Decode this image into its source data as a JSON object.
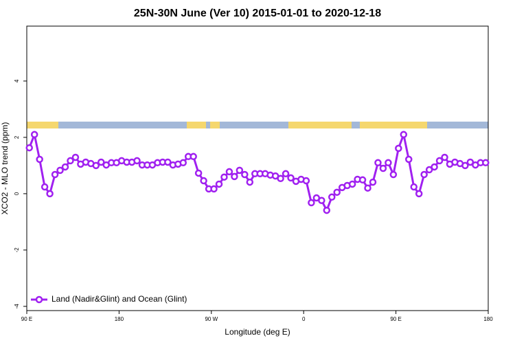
{
  "chart_data": {
    "type": "line",
    "title": "25N-30N June (Ver 10)   2015-01-01 to 2020-12-18",
    "x_label": "Longitude (deg E)",
    "y_label": "XCO2 - MLO trend (ppm)",
    "x": [
      92.5,
      97.5,
      102.5,
      107.5,
      112.5,
      117.5,
      122.5,
      127.5,
      132.5,
      137.5,
      142.5,
      147.5,
      152.5,
      157.5,
      162.5,
      167.5,
      172.5,
      177.5,
      182.5,
      187.5,
      192.5,
      197.5,
      202.5,
      207.5,
      212.5,
      217.5,
      222.5,
      227.5,
      232.5,
      237.5,
      242.5,
      247.5,
      252.5,
      257.5,
      262.5,
      267.5,
      272.5,
      277.5,
      282.5,
      287.5,
      292.5,
      297.5,
      302.5,
      307.5,
      312.5,
      317.5,
      322.5,
      327.5,
      332.5,
      337.5,
      342.5,
      347.5,
      352.5,
      357.5,
      362.5,
      367.5,
      372.5,
      377.5,
      382.5,
      387.5,
      392.5,
      397.5,
      402.5,
      407.5,
      412.5,
      417.5,
      422.5,
      427.5,
      432.5,
      437.5,
      442.5,
      447.5,
      452.5,
      457.5,
      462.5,
      467.5,
      472.5,
      477.5,
      482.5,
      487.5,
      492.5,
      497.5,
      502.5,
      507.5,
      512.5,
      517.5,
      522.5,
      527.5,
      532.5,
      537.5
    ],
    "series": [
      {
        "name": "Land (Nadir&Glint) and Ocean (Glint)",
        "color": "#a020f0",
        "values": [
          1.63,
          2.1,
          1.22,
          0.24,
          0.0,
          0.68,
          0.83,
          0.95,
          1.17,
          1.29,
          1.05,
          1.12,
          1.07,
          1.0,
          1.12,
          1.02,
          1.1,
          1.1,
          1.17,
          1.12,
          1.12,
          1.17,
          1.02,
          1.02,
          1.02,
          1.1,
          1.12,
          1.12,
          1.02,
          1.05,
          1.1,
          1.32,
          1.32,
          0.73,
          0.46,
          0.17,
          0.17,
          0.34,
          0.59,
          0.78,
          0.61,
          0.83,
          0.68,
          0.41,
          0.71,
          0.71,
          0.71,
          0.66,
          0.63,
          0.54,
          0.71,
          0.56,
          0.44,
          0.51,
          0.46,
          -0.32,
          -0.15,
          -0.24,
          -0.59,
          -0.12,
          0.05,
          0.22,
          0.29,
          0.34,
          0.51,
          0.49,
          0.2,
          0.41,
          1.1,
          0.9,
          1.1,
          0.68,
          1.61,
          2.1,
          1.22,
          0.24,
          0.0,
          0.68,
          0.85,
          0.95,
          1.17,
          1.29,
          1.05,
          1.12,
          1.07,
          1.0,
          1.12,
          1.02,
          1.1,
          1.1
        ]
      }
    ],
    "xlim": [
      90,
      540
    ],
    "xticks": [
      {
        "value": 90,
        "label": "90 E"
      },
      180,
      {
        "value": 270,
        "label": "90 W"
      },
      {
        "value": 360,
        "label": "0"
      },
      {
        "value": 450,
        "label": "90 E"
      },
      {
        "value": 540,
        "label": "180"
      }
    ],
    "ylim": [
      -4.15,
      5.95
    ],
    "yticks": [
      -4,
      -2,
      0,
      2,
      4
    ],
    "legend": "bottom-left"
  }
}
